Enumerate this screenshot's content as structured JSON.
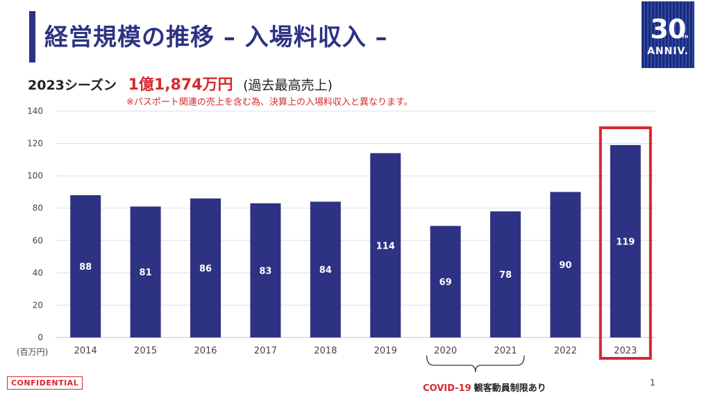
{
  "page": {
    "title": "経営規模の推移 – 入場料収入 –",
    "headline_prefix": "2023シーズン",
    "headline_value": "1億1,874万円",
    "headline_suffix": "(過去最高売上)",
    "subnote": "※パスポート関連の売上を含む為、決算上の入場料収入と異なります。",
    "unit_label": "(百万円)",
    "covid_red": "COVID-19",
    "covid_black": "観客動員制限あり",
    "confidential": "CONFIDENTIAL",
    "page_number": "1",
    "logo_number": "30",
    "logo_th": "TH",
    "logo_text": "ANNIV."
  },
  "colors": {
    "bar": "#2d3282",
    "highlight": "#d7282f",
    "grid": "#d9dfea"
  },
  "chart_data": {
    "type": "bar",
    "title": "",
    "xlabel": "",
    "ylabel": "(百万円)",
    "categories": [
      "2014",
      "2015",
      "2016",
      "2017",
      "2018",
      "2019",
      "2020",
      "2021",
      "2022",
      "2023"
    ],
    "values": [
      88,
      81,
      86,
      83,
      84,
      114,
      69,
      78,
      90,
      119
    ],
    "ylim": [
      0,
      140
    ],
    "yticks": [
      0,
      20,
      40,
      60,
      80,
      100,
      120,
      140
    ],
    "grid": true,
    "highlighted_category": "2023",
    "bracketed_categories": [
      "2020",
      "2021"
    ]
  }
}
